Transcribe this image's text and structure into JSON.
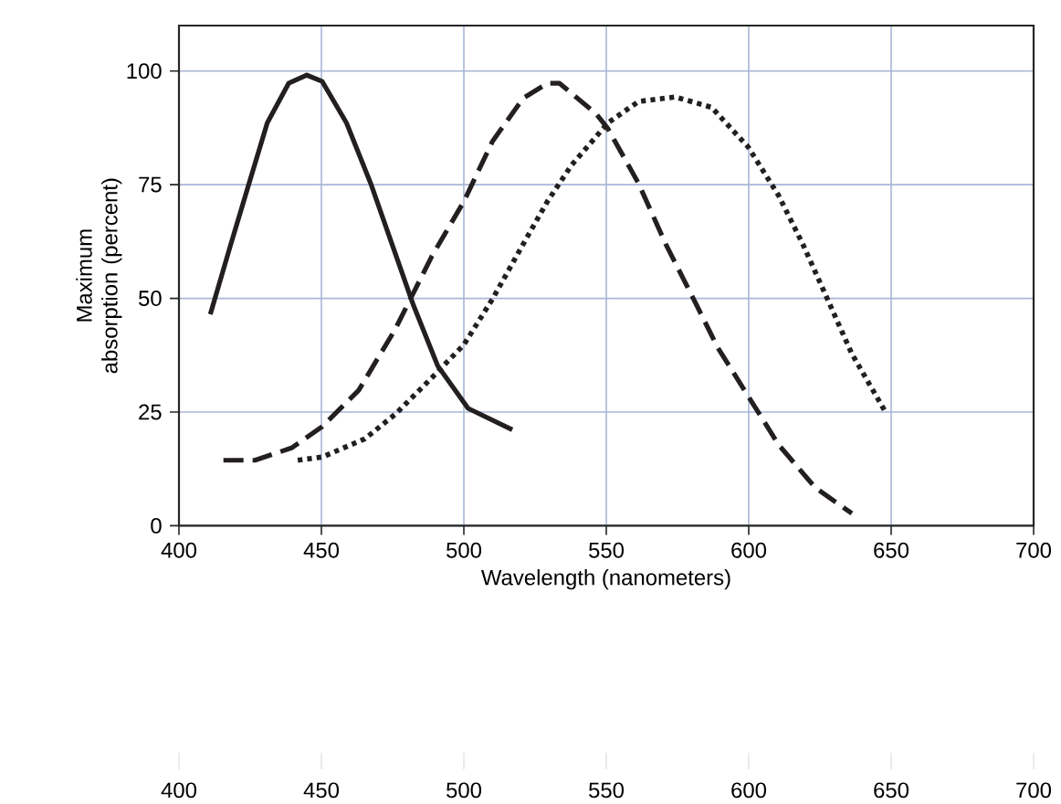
{
  "chart_data": {
    "type": "line",
    "xlabel": "Wavelength (nanometers)",
    "ylabel": "Maximum absorption (percent)",
    "xlim": [
      400,
      700
    ],
    "ylim": [
      0,
      110
    ],
    "xticks": [
      400,
      450,
      500,
      550,
      600,
      650,
      700
    ],
    "yticks": [
      0,
      25,
      50,
      75,
      100
    ],
    "annotations": [
      "400",
      "450",
      "500",
      "550",
      "600",
      "650",
      "700"
    ],
    "grid": true,
    "marker": "none",
    "series": [
      {
        "color": "#231f20",
        "line_style": "solid",
        "x": [
          411,
          418.2,
          424.6,
          431,
          438.5,
          444.9,
          450.3,
          458.8,
          467.3,
          474.8,
          482.3,
          490.8,
          501.5,
          517
        ],
        "values": [
          46.5,
          61.9,
          75.3,
          88.6,
          97.3,
          99.1,
          97.7,
          88.6,
          75.3,
          61.9,
          48.5,
          35.2,
          25.8,
          21.1
        ]
      },
      {
        "color": "#231f20",
        "line_style": "dashed",
        "x": [
          415.6,
          426.7,
          439.5,
          450.3,
          463.1,
          475.9,
          488.7,
          500,
          510.1,
          520.8,
          529.3,
          533.6,
          546.4,
          550.6,
          561.3,
          570.9,
          580.6,
          589.1,
          599.8,
          610.5,
          623.3,
          636.2
        ],
        "values": [
          14.4,
          14.4,
          17.1,
          21.8,
          29.8,
          43.2,
          59.2,
          71.3,
          84.6,
          94,
          97.3,
          97.3,
          90.6,
          87.3,
          75.3,
          61.9,
          49.9,
          39.2,
          28.5,
          17.8,
          8.4,
          2.7
        ]
      },
      {
        "color": "#231f20",
        "line_style": "dotted",
        "x": [
          441.7,
          450.3,
          465.2,
          475.9,
          488.7,
          500,
          510.1,
          520.8,
          529.3,
          537.8,
          550.6,
          561.3,
          574.2,
          587,
          599.8,
          610.5,
          619,
          627.6,
          636.2,
          647.9
        ],
        "values": [
          14.4,
          15.1,
          19.1,
          24.5,
          32.5,
          39.8,
          49.9,
          61.9,
          71.3,
          79.3,
          88.6,
          93.3,
          94.3,
          92,
          83.3,
          72.6,
          61.9,
          49.9,
          37.8,
          25.1
        ]
      }
    ]
  }
}
